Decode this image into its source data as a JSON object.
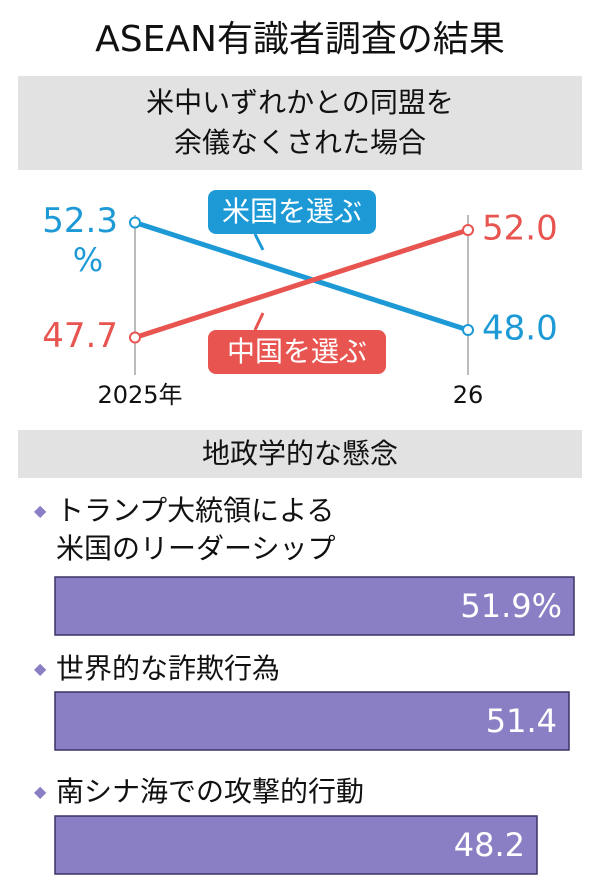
{
  "title": "ASEAN有識者調査の結果",
  "chart_data": [
    {
      "type": "line",
      "title": "米中いずれかとの同盟を\n余儀なくされた場合",
      "categories": [
        "2025年",
        "26"
      ],
      "unit": "%",
      "series": [
        {
          "name": "米国を選ぶ",
          "color": "#1d9ad6",
          "values": [
            52.3,
            48.0
          ],
          "value_labels": [
            "52.3",
            "48.0"
          ]
        },
        {
          "name": "中国を選ぶ",
          "color": "#e85450",
          "values": [
            47.7,
            52.0
          ],
          "value_labels": [
            "47.7",
            "52.0"
          ]
        }
      ]
    },
    {
      "type": "bar",
      "orientation": "horizontal",
      "title": "地政学的な懸念",
      "color": "#8a7fc4",
      "categories": [
        "トランプ大統領による\n米国のリーダーシップ",
        "世界的な詐欺行為",
        "南シナ海での攻撃的行動"
      ],
      "values": [
        51.9,
        51.4,
        48.2
      ],
      "value_labels": [
        "51.9%",
        "51.4",
        "48.2"
      ]
    }
  ]
}
